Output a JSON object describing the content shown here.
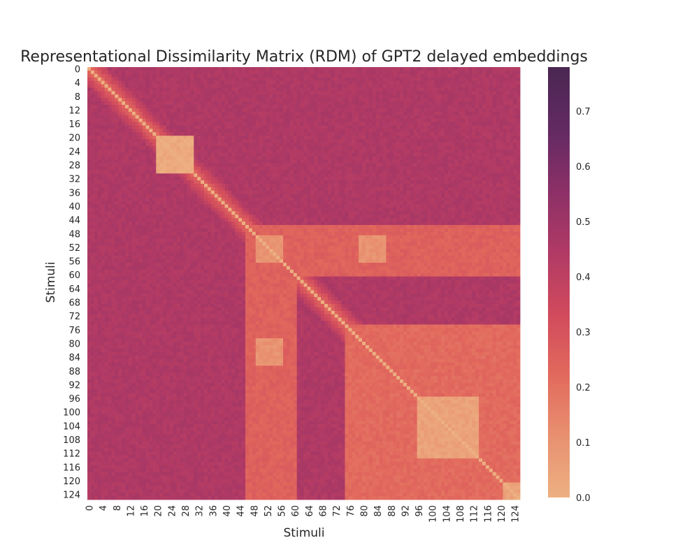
{
  "chart_data": {
    "type": "heatmap",
    "title": "Representational Dissimilarity Matrix (RDM) of GPT2 delayed embeddings",
    "xlabel": "Stimuli",
    "ylabel": "Stimuli",
    "n": 126,
    "x_tick_labels": [
      "0",
      "4",
      "8",
      "12",
      "16",
      "20",
      "24",
      "28",
      "32",
      "36",
      "40",
      "44",
      "48",
      "52",
      "56",
      "60",
      "64",
      "68",
      "72",
      "76",
      "80",
      "84",
      "88",
      "92",
      "96",
      "100",
      "104",
      "108",
      "112",
      "116",
      "120",
      "124"
    ],
    "y_tick_labels": [
      "0",
      "4",
      "8",
      "12",
      "16",
      "20",
      "24",
      "28",
      "32",
      "36",
      "40",
      "44",
      "48",
      "52",
      "56",
      "60",
      "64",
      "68",
      "72",
      "76",
      "80",
      "84",
      "88",
      "92",
      "96",
      "100",
      "104",
      "108",
      "112",
      "116",
      "120",
      "124"
    ],
    "colorbar": {
      "vmin": 0.0,
      "vmax": 0.78,
      "tick_labels": [
        "0.0",
        "0.1",
        "0.2",
        "0.3",
        "0.4",
        "0.5",
        "0.6",
        "0.7"
      ],
      "colormap": "flare",
      "stops": [
        "#edb081",
        "#e89070",
        "#e2695d",
        "#d04a5d",
        "#b03a65",
        "#8b3067",
        "#622a62",
        "#4a2752"
      ]
    },
    "structure": {
      "default_dissimilarity": 0.45,
      "diagonal": 0.0,
      "clusters": [
        {
          "rows": [
            20,
            30
          ],
          "cols": [
            20,
            30
          ],
          "within": 0.02
        },
        {
          "rows": [
            49,
            56
          ],
          "cols": [
            49,
            56
          ],
          "within": 0.1
        },
        {
          "rows": [
            49,
            56
          ],
          "cols": [
            79,
            86
          ],
          "within": 0.1
        },
        {
          "rows": [
            79,
            86
          ],
          "cols": [
            49,
            56
          ],
          "within": 0.1
        },
        {
          "rows": [
            96,
            113
          ],
          "cols": [
            96,
            113
          ],
          "within": 0.05
        },
        {
          "rows": [
            121,
            125
          ],
          "cols": [
            121,
            125
          ],
          "within": 0.05
        }
      ],
      "regions": [
        {
          "rows": [
            0,
            125
          ],
          "cols": [
            2,
            3
          ],
          "value": 0.68
        },
        {
          "rows": [
            2,
            3
          ],
          "cols": [
            0,
            125
          ],
          "value": 0.68
        },
        {
          "rows": [
            75,
            125
          ],
          "cols": [
            75,
            125
          ],
          "value": 0.22
        },
        {
          "rows": [
            46,
            60
          ],
          "cols": [
            46,
            125
          ],
          "value": 0.25
        },
        {
          "rows": [
            46,
            125
          ],
          "cols": [
            46,
            60
          ],
          "value": 0.25
        },
        {
          "rows": [
            92,
            125
          ],
          "cols": [
            60,
            72
          ],
          "value": 0.55
        },
        {
          "rows": [
            60,
            72
          ],
          "cols": [
            92,
            125
          ],
          "value": 0.55
        }
      ]
    }
  }
}
